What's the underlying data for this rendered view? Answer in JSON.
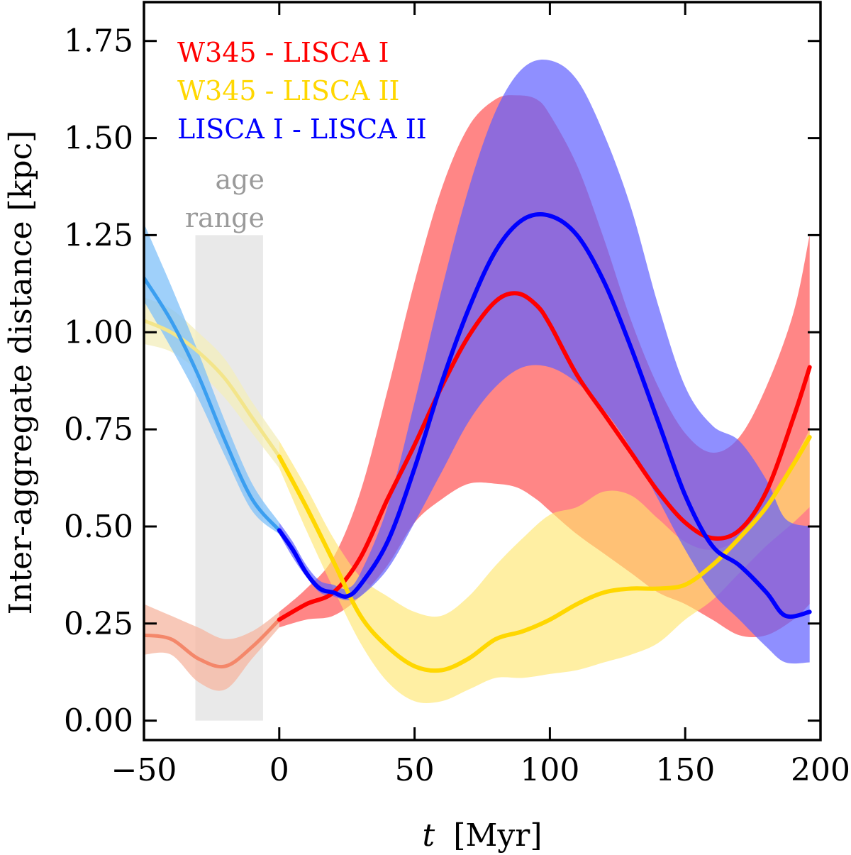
{
  "chart_data": {
    "type": "line",
    "title": "",
    "xlabel": "t [Myr]",
    "xlabel_var": "t",
    "xlabel_unit": "[Myr]",
    "ylabel": "Inter-aggregate distance [kpc]",
    "xlim": [
      -50,
      200
    ],
    "ylim": [
      -0.05,
      1.85
    ],
    "xticks": [
      -50,
      0,
      50,
      100,
      150,
      200
    ],
    "xtick_labels": [
      "−50",
      "0",
      "50",
      "100",
      "150",
      "200"
    ],
    "yticks": [
      0,
      0.25,
      0.5,
      0.75,
      1.0,
      1.25,
      1.5,
      1.75
    ],
    "ytick_labels": [
      "0.00",
      "0.25",
      "0.50",
      "0.75",
      "1.00",
      "1.25",
      "1.50",
      "1.75"
    ],
    "legend_position": "top-left",
    "annotation": {
      "lines": [
        "age",
        "range"
      ],
      "x_range": [
        -31,
        -6
      ],
      "y_top": 1.25,
      "color": "#e9e9e9"
    },
    "series": [
      {
        "name": "W345 - LISCA I",
        "color": "#ff0000",
        "band_color": "#ff4d4d",
        "past_line_color": "#f4876a",
        "past_band_color": "#f6b5a0",
        "x": [
          -50,
          -40,
          -30,
          -20,
          -10,
          0,
          10,
          20,
          30,
          40,
          50,
          60,
          70,
          80,
          88,
          95,
          100,
          110,
          120,
          130,
          140,
          150,
          160,
          170,
          180,
          190,
          196
        ],
        "y": [
          0.22,
          0.21,
          0.16,
          0.14,
          0.19,
          0.26,
          0.3,
          0.33,
          0.42,
          0.57,
          0.71,
          0.86,
          0.99,
          1.08,
          1.1,
          1.07,
          1.02,
          0.89,
          0.79,
          0.69,
          0.59,
          0.51,
          0.47,
          0.49,
          0.59,
          0.78,
          0.91
        ],
        "lo": [
          0.17,
          0.17,
          0.1,
          0.08,
          0.16,
          0.24,
          0.26,
          0.27,
          0.32,
          0.4,
          0.51,
          0.57,
          0.61,
          0.61,
          0.6,
          0.57,
          0.54,
          0.48,
          0.43,
          0.38,
          0.33,
          0.3,
          0.26,
          0.22,
          0.22,
          0.26,
          0.3
        ],
        "hi": [
          0.3,
          0.27,
          0.24,
          0.21,
          0.23,
          0.28,
          0.34,
          0.42,
          0.59,
          0.85,
          1.13,
          1.37,
          1.53,
          1.6,
          1.61,
          1.6,
          1.56,
          1.43,
          1.24,
          1.03,
          0.86,
          0.74,
          0.69,
          0.73,
          0.86,
          1.05,
          1.25
        ]
      },
      {
        "name": "W345 - LISCA II",
        "color": "#ffd700",
        "band_color": "#ffe56a",
        "past_line_color": "#f3e58a",
        "past_band_color": "#f3eebb",
        "x": [
          -50,
          -40,
          -30,
          -20,
          -10,
          0,
          10,
          20,
          30,
          40,
          50,
          60,
          70,
          80,
          90,
          100,
          110,
          120,
          130,
          140,
          150,
          160,
          170,
          180,
          190,
          196
        ],
        "y": [
          1.03,
          1.0,
          0.95,
          0.88,
          0.78,
          0.68,
          0.55,
          0.41,
          0.27,
          0.19,
          0.14,
          0.13,
          0.16,
          0.21,
          0.23,
          0.26,
          0.3,
          0.33,
          0.34,
          0.34,
          0.35,
          0.4,
          0.47,
          0.55,
          0.66,
          0.73
        ],
        "lo": [
          0.97,
          0.95,
          0.9,
          0.83,
          0.74,
          0.65,
          0.49,
          0.34,
          0.2,
          0.1,
          0.05,
          0.05,
          0.08,
          0.11,
          0.11,
          0.12,
          0.13,
          0.15,
          0.17,
          0.2,
          0.26,
          0.31,
          0.38,
          0.45,
          0.51,
          0.55
        ],
        "hi": [
          1.09,
          1.06,
          1.0,
          0.93,
          0.82,
          0.72,
          0.6,
          0.47,
          0.37,
          0.32,
          0.28,
          0.27,
          0.32,
          0.4,
          0.47,
          0.53,
          0.55,
          0.59,
          0.58,
          0.52,
          0.46,
          0.44,
          0.47,
          0.55,
          0.67,
          0.75
        ]
      },
      {
        "name": "LISCA I - LISCA II",
        "color": "#0000ff",
        "band_color": "#6060ff",
        "past_line_color": "#3a9ef0",
        "past_band_color": "#7fc0f8",
        "x": [
          -50,
          -40,
          -30,
          -20,
          -10,
          0,
          5,
          10,
          15,
          20,
          25,
          30,
          40,
          50,
          60,
          70,
          80,
          90,
          100,
          110,
          120,
          130,
          140,
          150,
          160,
          170,
          180,
          187,
          196
        ],
        "y": [
          1.14,
          1.03,
          0.89,
          0.72,
          0.57,
          0.49,
          0.44,
          0.38,
          0.34,
          0.33,
          0.32,
          0.35,
          0.46,
          0.65,
          0.87,
          1.06,
          1.21,
          1.29,
          1.3,
          1.25,
          1.13,
          0.96,
          0.77,
          0.58,
          0.45,
          0.4,
          0.33,
          0.27,
          0.28
        ],
        "lo": [
          1.08,
          0.96,
          0.83,
          0.68,
          0.54,
          0.48,
          0.42,
          0.37,
          0.33,
          0.32,
          0.31,
          0.32,
          0.39,
          0.51,
          0.64,
          0.77,
          0.86,
          0.91,
          0.91,
          0.87,
          0.8,
          0.7,
          0.57,
          0.44,
          0.33,
          0.26,
          0.19,
          0.15,
          0.15
        ],
        "hi": [
          1.28,
          1.12,
          0.95,
          0.77,
          0.61,
          0.51,
          0.46,
          0.4,
          0.36,
          0.35,
          0.34,
          0.38,
          0.55,
          0.82,
          1.11,
          1.37,
          1.57,
          1.68,
          1.7,
          1.65,
          1.51,
          1.32,
          1.07,
          0.86,
          0.76,
          0.72,
          0.62,
          0.52,
          0.5
        ]
      }
    ]
  }
}
